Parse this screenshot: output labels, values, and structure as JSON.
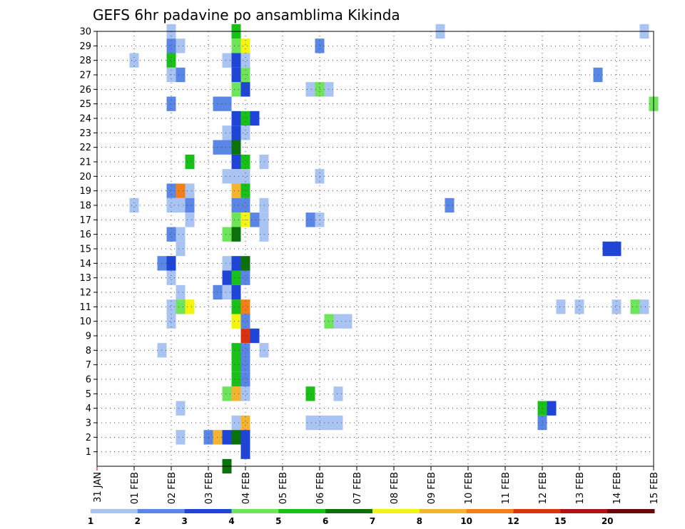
{
  "chart_data": {
    "type": "heatmap",
    "title": "GEFS 6hr padavine po ansamblima Kikinda",
    "xlabel": "",
    "ylabel": "",
    "x_tick_labels": [
      "31 JAN",
      "01 FEB",
      "02 FEB",
      "03 FEB",
      "04 FEB",
      "05 FEB",
      "06 FEB",
      "07 FEB",
      "08 FEB",
      "09 FEB",
      "10 FEB",
      "11 FEB",
      "12 FEB",
      "13 FEB",
      "14 FEB",
      "15 FEB"
    ],
    "x_range_days": [
      0,
      15
    ],
    "y_tick_labels": [
      "1",
      "2",
      "3",
      "4",
      "5",
      "6",
      "7",
      "8",
      "9",
      "10",
      "11",
      "12",
      "13",
      "14",
      "15",
      "16",
      "17",
      "18",
      "19",
      "20",
      "21",
      "22",
      "23",
      "24",
      "25",
      "26",
      "27",
      "28",
      "29",
      "30"
    ],
    "y_range": [
      0,
      30
    ],
    "grid": true,
    "colorbar": {
      "labels": [
        "1",
        "2",
        "3",
        "4",
        "5",
        "6",
        "7",
        "8",
        "10",
        "12",
        "15",
        "20"
      ],
      "colors": [
        "#a9c3f2",
        "#5a86e6",
        "#1e44d8",
        "#6ee45a",
        "#18c018",
        "#0b720b",
        "#f4f40e",
        "#f5b42e",
        "#f38017",
        "#dd3210",
        "#b11410",
        "#6a0808"
      ]
    },
    "cells": [
      {
        "d": 2.0,
        "m": 30,
        "l": 1
      },
      {
        "d": 3.75,
        "m": 30,
        "l": 5
      },
      {
        "d": 9.25,
        "m": 30,
        "l": 1
      },
      {
        "d": 14.75,
        "m": 30,
        "l": 1
      },
      {
        "d": 2.0,
        "m": 29,
        "l": 2
      },
      {
        "d": 2.25,
        "m": 29,
        "l": 1
      },
      {
        "d": 3.75,
        "m": 29,
        "l": 4
      },
      {
        "d": 4.0,
        "m": 29,
        "l": 7
      },
      {
        "d": 6.0,
        "m": 29,
        "l": 2
      },
      {
        "d": 1.0,
        "m": 28,
        "l": 1
      },
      {
        "d": 2.0,
        "m": 28,
        "l": 5
      },
      {
        "d": 3.5,
        "m": 28,
        "l": 1
      },
      {
        "d": 3.75,
        "m": 28,
        "l": 3
      },
      {
        "d": 4.0,
        "m": 28,
        "l": 1
      },
      {
        "d": 2.0,
        "m": 27,
        "l": 1
      },
      {
        "d": 2.25,
        "m": 27,
        "l": 2
      },
      {
        "d": 3.75,
        "m": 27,
        "l": 3
      },
      {
        "d": 4.0,
        "m": 27,
        "l": 4
      },
      {
        "d": 13.5,
        "m": 27,
        "l": 2
      },
      {
        "d": 3.75,
        "m": 26,
        "l": 4
      },
      {
        "d": 4.0,
        "m": 26,
        "l": 3
      },
      {
        "d": 5.75,
        "m": 26,
        "l": 1
      },
      {
        "d": 6.0,
        "m": 26,
        "l": 4
      },
      {
        "d": 6.25,
        "m": 26,
        "l": 1
      },
      {
        "d": 2.0,
        "m": 25,
        "l": 2
      },
      {
        "d": 3.25,
        "m": 25,
        "l": 2
      },
      {
        "d": 3.5,
        "m": 25,
        "l": 2
      },
      {
        "d": 15.0,
        "m": 25,
        "l": 4
      },
      {
        "d": 3.75,
        "m": 24,
        "l": 3
      },
      {
        "d": 4.0,
        "m": 24,
        "l": 5
      },
      {
        "d": 4.25,
        "m": 24,
        "l": 3
      },
      {
        "d": 3.5,
        "m": 23,
        "l": 1
      },
      {
        "d": 3.75,
        "m": 23,
        "l": 3
      },
      {
        "d": 4.0,
        "m": 23,
        "l": 1
      },
      {
        "d": 3.25,
        "m": 22,
        "l": 2
      },
      {
        "d": 3.5,
        "m": 22,
        "l": 2
      },
      {
        "d": 3.75,
        "m": 22,
        "l": 6
      },
      {
        "d": 2.5,
        "m": 21,
        "l": 5
      },
      {
        "d": 3.75,
        "m": 21,
        "l": 3
      },
      {
        "d": 4.0,
        "m": 21,
        "l": 5
      },
      {
        "d": 4.5,
        "m": 21,
        "l": 1
      },
      {
        "d": 3.5,
        "m": 20,
        "l": 1
      },
      {
        "d": 3.75,
        "m": 20,
        "l": 1
      },
      {
        "d": 4.0,
        "m": 20,
        "l": 1
      },
      {
        "d": 6.0,
        "m": 20,
        "l": 1
      },
      {
        "d": 2.0,
        "m": 19,
        "l": 2
      },
      {
        "d": 2.25,
        "m": 19,
        "l": 9
      },
      {
        "d": 2.5,
        "m": 19,
        "l": 1
      },
      {
        "d": 3.75,
        "m": 19,
        "l": 8
      },
      {
        "d": 4.0,
        "m": 19,
        "l": 5
      },
      {
        "d": 1.0,
        "m": 18,
        "l": 1
      },
      {
        "d": 2.0,
        "m": 18,
        "l": 1
      },
      {
        "d": 2.25,
        "m": 18,
        "l": 1
      },
      {
        "d": 2.5,
        "m": 18,
        "l": 2
      },
      {
        "d": 3.75,
        "m": 18,
        "l": 2
      },
      {
        "d": 4.0,
        "m": 18,
        "l": 2
      },
      {
        "d": 4.5,
        "m": 18,
        "l": 1
      },
      {
        "d": 9.5,
        "m": 18,
        "l": 2
      },
      {
        "d": 2.5,
        "m": 17,
        "l": 1
      },
      {
        "d": 3.75,
        "m": 17,
        "l": 4
      },
      {
        "d": 4.0,
        "m": 17,
        "l": 7
      },
      {
        "d": 4.25,
        "m": 17,
        "l": 2
      },
      {
        "d": 4.5,
        "m": 17,
        "l": 1
      },
      {
        "d": 5.75,
        "m": 17,
        "l": 2
      },
      {
        "d": 6.0,
        "m": 17,
        "l": 1
      },
      {
        "d": 2.0,
        "m": 16,
        "l": 2
      },
      {
        "d": 2.25,
        "m": 16,
        "l": 1
      },
      {
        "d": 3.5,
        "m": 16,
        "l": 4
      },
      {
        "d": 3.75,
        "m": 16,
        "l": 6
      },
      {
        "d": 4.5,
        "m": 16,
        "l": 1
      },
      {
        "d": 2.25,
        "m": 15,
        "l": 1
      },
      {
        "d": 13.75,
        "m": 15,
        "l": 3
      },
      {
        "d": 14.0,
        "m": 15,
        "l": 3
      },
      {
        "d": 1.75,
        "m": 14,
        "l": 2
      },
      {
        "d": 2.0,
        "m": 14,
        "l": 3
      },
      {
        "d": 3.5,
        "m": 14,
        "l": 1
      },
      {
        "d": 3.75,
        "m": 14,
        "l": 3
      },
      {
        "d": 4.0,
        "m": 14,
        "l": 6
      },
      {
        "d": 2.0,
        "m": 13,
        "l": 1
      },
      {
        "d": 3.5,
        "m": 13,
        "l": 3
      },
      {
        "d": 3.75,
        "m": 13,
        "l": 5
      },
      {
        "d": 4.0,
        "m": 13,
        "l": 2
      },
      {
        "d": 2.25,
        "m": 12,
        "l": 1
      },
      {
        "d": 3.25,
        "m": 12,
        "l": 2
      },
      {
        "d": 3.5,
        "m": 12,
        "l": 1
      },
      {
        "d": 3.75,
        "m": 12,
        "l": 3
      },
      {
        "d": 2.0,
        "m": 11,
        "l": 1
      },
      {
        "d": 2.25,
        "m": 11,
        "l": 4
      },
      {
        "d": 2.5,
        "m": 11,
        "l": 7
      },
      {
        "d": 3.75,
        "m": 11,
        "l": 5
      },
      {
        "d": 4.0,
        "m": 11,
        "l": 9
      },
      {
        "d": 12.5,
        "m": 11,
        "l": 1
      },
      {
        "d": 13.0,
        "m": 11,
        "l": 1
      },
      {
        "d": 14.0,
        "m": 11,
        "l": 1
      },
      {
        "d": 14.5,
        "m": 11,
        "l": 4
      },
      {
        "d": 14.75,
        "m": 11,
        "l": 1
      },
      {
        "d": 2.0,
        "m": 10,
        "l": 1
      },
      {
        "d": 3.75,
        "m": 10,
        "l": 7
      },
      {
        "d": 4.0,
        "m": 10,
        "l": 2
      },
      {
        "d": 6.25,
        "m": 10,
        "l": 4
      },
      {
        "d": 6.5,
        "m": 10,
        "l": 1
      },
      {
        "d": 6.75,
        "m": 10,
        "l": 1
      },
      {
        "d": 4.0,
        "m": 9,
        "l": 10
      },
      {
        "d": 4.25,
        "m": 9,
        "l": 3
      },
      {
        "d": 1.75,
        "m": 8,
        "l": 1
      },
      {
        "d": 3.75,
        "m": 8,
        "l": 5
      },
      {
        "d": 4.0,
        "m": 8,
        "l": 2
      },
      {
        "d": 4.5,
        "m": 8,
        "l": 1
      },
      {
        "d": 3.75,
        "m": 7,
        "l": 5
      },
      {
        "d": 4.0,
        "m": 7,
        "l": 2
      },
      {
        "d": 3.75,
        "m": 6,
        "l": 5
      },
      {
        "d": 4.0,
        "m": 6,
        "l": 2
      },
      {
        "d": 3.5,
        "m": 5,
        "l": 4
      },
      {
        "d": 3.75,
        "m": 5,
        "l": 8
      },
      {
        "d": 4.0,
        "m": 5,
        "l": 1
      },
      {
        "d": 5.75,
        "m": 5,
        "l": 5
      },
      {
        "d": 6.5,
        "m": 5,
        "l": 1
      },
      {
        "d": 2.25,
        "m": 4,
        "l": 1
      },
      {
        "d": 12.0,
        "m": 4,
        "l": 5
      },
      {
        "d": 12.25,
        "m": 4,
        "l": 3
      },
      {
        "d": 3.75,
        "m": 3,
        "l": 1
      },
      {
        "d": 4.0,
        "m": 3,
        "l": 8
      },
      {
        "d": 5.75,
        "m": 3,
        "l": 1
      },
      {
        "d": 6.0,
        "m": 3,
        "l": 1
      },
      {
        "d": 6.25,
        "m": 3,
        "l": 1
      },
      {
        "d": 6.5,
        "m": 3,
        "l": 1
      },
      {
        "d": 12.0,
        "m": 3,
        "l": 2
      },
      {
        "d": 2.25,
        "m": 2,
        "l": 1
      },
      {
        "d": 3.0,
        "m": 2,
        "l": 2
      },
      {
        "d": 3.25,
        "m": 2,
        "l": 8
      },
      {
        "d": 3.5,
        "m": 2,
        "l": 3
      },
      {
        "d": 3.75,
        "m": 2,
        "l": 6
      },
      {
        "d": 4.0,
        "m": 2,
        "l": 3
      },
      {
        "d": 4.0,
        "m": 1,
        "l": 3
      },
      {
        "d": 3.5,
        "m": 0,
        "l": 6
      }
    ]
  }
}
